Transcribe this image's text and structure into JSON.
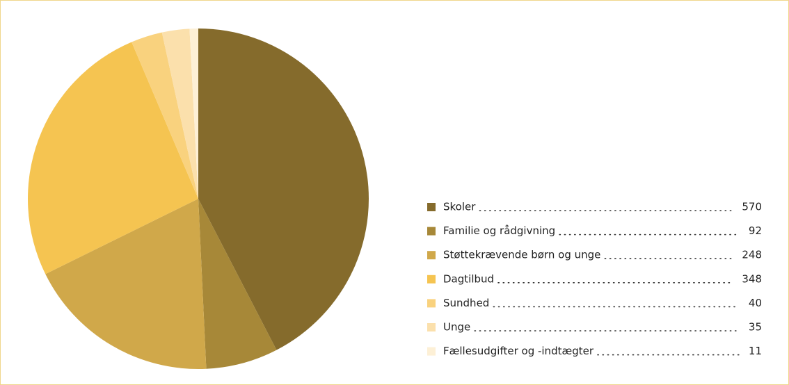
{
  "chart_data": {
    "type": "pie",
    "categories": [
      "Skoler",
      "Familie og rådgivning",
      "Støttekrævende børn og unge",
      "Dagtilbud",
      "Sundhed",
      "Unge",
      "Fællesudgifter og -indtægter"
    ],
    "values": [
      570,
      92,
      248,
      348,
      40,
      35,
      11
    ],
    "colors": [
      "#856b2c",
      "#a78838",
      "#d0a84a",
      "#f5c451",
      "#f9d27e",
      "#fbe0ac",
      "#fdf0d6"
    ],
    "legend": "right"
  }
}
